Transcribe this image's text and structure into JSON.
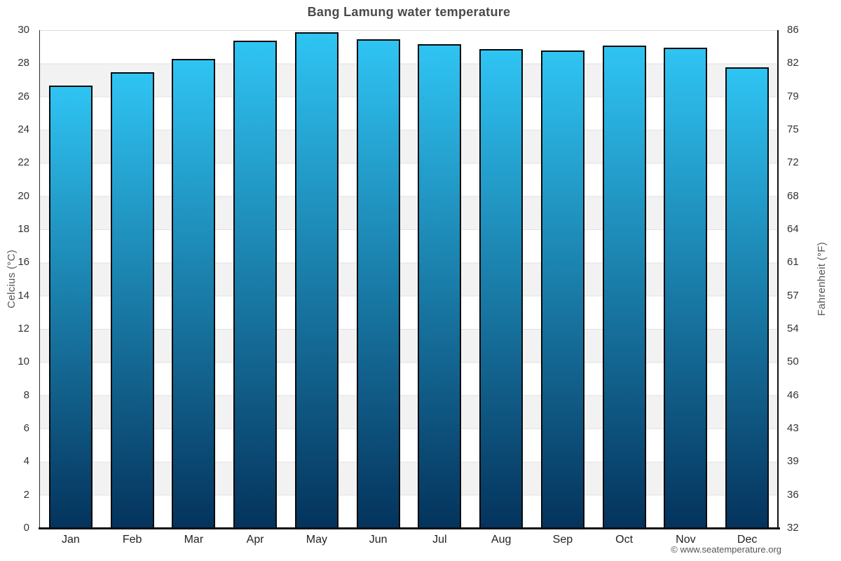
{
  "chart_data": {
    "type": "bar",
    "title": "Bang Lamung water temperature",
    "categories": [
      "Jan",
      "Feb",
      "Mar",
      "Apr",
      "May",
      "Jun",
      "Jul",
      "Aug",
      "Sep",
      "Oct",
      "Nov",
      "Dec"
    ],
    "values": [
      26.7,
      27.5,
      28.3,
      29.4,
      29.9,
      29.5,
      29.2,
      28.9,
      28.8,
      29.1,
      29.0,
      27.8
    ],
    "unit": "°C",
    "ylabel": "Celcius (°C)",
    "ylabel_right": "Fahrenheit (°F)",
    "ylim": [
      0,
      30
    ],
    "yticks_celsius": [
      30,
      28,
      26,
      24,
      22,
      20,
      18,
      16,
      14,
      12,
      10,
      8,
      6,
      4,
      2,
      0
    ],
    "yticks_fahrenheit": [
      86,
      82,
      79,
      75,
      72,
      68,
      64,
      61,
      57,
      54,
      50,
      46,
      43,
      39,
      36,
      32
    ],
    "grid": "alternating-horizontal-bands",
    "legend": false,
    "colors": {
      "bar_top": "#2fc4f3",
      "bar_bottom": "#04335c",
      "bar_border": "#0a0a0a",
      "band_gray": "#f2f2f2",
      "band_white": "#ffffff"
    }
  },
  "footer": {
    "copyright": "© www.seatemperature.org"
  }
}
